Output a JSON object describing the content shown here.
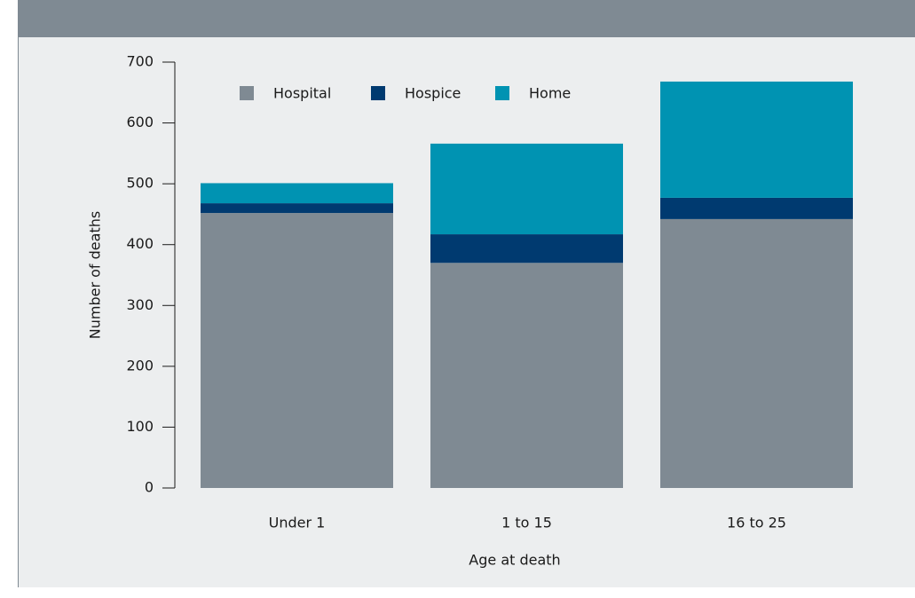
{
  "chart_data": {
    "type": "stacked-bar",
    "categories": [
      "Under 1",
      "1 to 15",
      "16 to 25"
    ],
    "series": [
      {
        "name": "Hospital",
        "color": "#7f8a93",
        "values": [
          452,
          370,
          442
        ]
      },
      {
        "name": "Hospice",
        "color": "#003a70",
        "values": [
          16,
          47,
          35
        ]
      },
      {
        "name": "Home",
        "color": "#0093b2",
        "values": [
          33,
          149,
          191
        ]
      }
    ],
    "ylim": [
      0,
      700
    ],
    "yticks": [
      0,
      100,
      200,
      300,
      400,
      500,
      600,
      700
    ],
    "y_label": "Number of deaths",
    "x_label": "Age at death",
    "legend": "top"
  }
}
